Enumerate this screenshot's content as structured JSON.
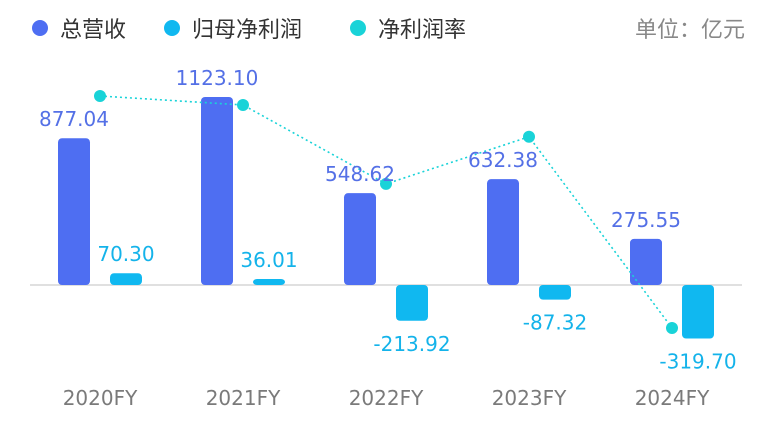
{
  "chart_data": {
    "type": "bar",
    "categories": [
      "2020FY",
      "2021FY",
      "2022FY",
      "2023FY",
      "2024FY"
    ],
    "series": [
      {
        "name": "总营收",
        "type": "bar",
        "color": "#4e6ef2",
        "values": [
          877.04,
          1123.1,
          548.62,
          632.38,
          275.55
        ]
      },
      {
        "name": "归母净利润",
        "type": "bar",
        "color": "#10b8f0",
        "values": [
          70.3,
          36.01,
          -213.92,
          -87.32,
          -319.7
        ]
      },
      {
        "name": "净利润率",
        "type": "line",
        "color": "#19d3d8",
        "values": [
          8.0,
          3.2,
          -39.0,
          -13.8,
          -116.0
        ]
      }
    ],
    "unit_label": "单位：亿元",
    "legend_position": "top-left",
    "ylim": [
      -400,
      1300
    ],
    "line_ylim": [
      -140,
      20
    ],
    "grid": false
  }
}
